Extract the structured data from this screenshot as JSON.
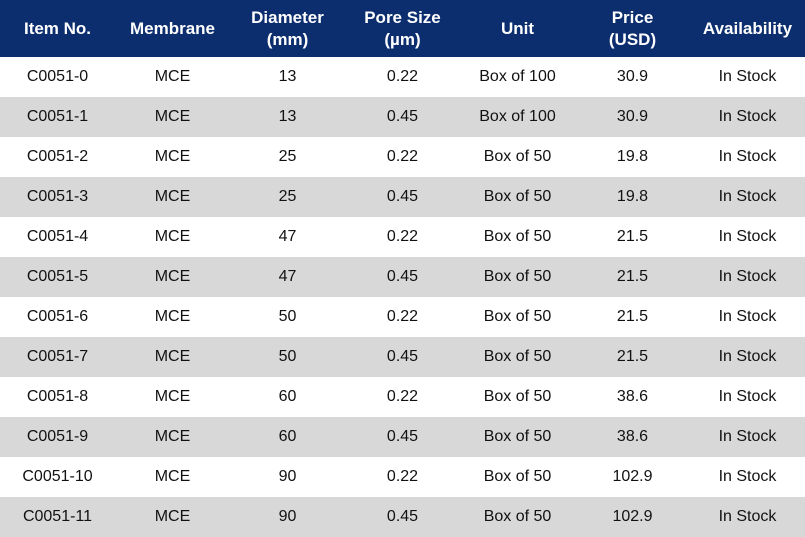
{
  "colors": {
    "header_bg": "#0c2e6f",
    "header_text": "#ffffff",
    "row_alt_bg": "#d8d8d8",
    "row_bg": "#ffffff"
  },
  "table": {
    "headers": [
      [
        "Item No."
      ],
      [
        "Membrane"
      ],
      [
        "Diameter",
        "(mm)"
      ],
      [
        "Pore Size",
        "(µm)"
      ],
      [
        "Unit"
      ],
      [
        "Price",
        "(USD)"
      ],
      [
        "Availability"
      ]
    ],
    "rows": [
      [
        "C0051-0",
        "MCE",
        "13",
        "0.22",
        "Box of 100",
        "30.9",
        "In Stock"
      ],
      [
        "C0051-1",
        "MCE",
        "13",
        "0.45",
        "Box of 100",
        "30.9",
        "In Stock"
      ],
      [
        "C0051-2",
        "MCE",
        "25",
        "0.22",
        "Box of 50",
        "19.8",
        "In Stock"
      ],
      [
        "C0051-3",
        "MCE",
        "25",
        "0.45",
        "Box of 50",
        "19.8",
        "In Stock"
      ],
      [
        "C0051-4",
        "MCE",
        "47",
        "0.22",
        "Box of 50",
        "21.5",
        "In Stock"
      ],
      [
        "C0051-5",
        "MCE",
        "47",
        "0.45",
        "Box of 50",
        "21.5",
        "In Stock"
      ],
      [
        "C0051-6",
        "MCE",
        "50",
        "0.22",
        "Box of 50",
        "21.5",
        "In Stock"
      ],
      [
        "C0051-7",
        "MCE",
        "50",
        "0.45",
        "Box of 50",
        "21.5",
        "In Stock"
      ],
      [
        "C0051-8",
        "MCE",
        "60",
        "0.22",
        "Box of 50",
        "38.6",
        "In Stock"
      ],
      [
        "C0051-9",
        "MCE",
        "60",
        "0.45",
        "Box of 50",
        "38.6",
        "In Stock"
      ],
      [
        "C0051-10",
        "MCE",
        "90",
        "0.22",
        "Box of 50",
        "102.9",
        "In Stock"
      ],
      [
        "C0051-11",
        "MCE",
        "90",
        "0.45",
        "Box of 50",
        "102.9",
        "In Stock"
      ]
    ]
  }
}
